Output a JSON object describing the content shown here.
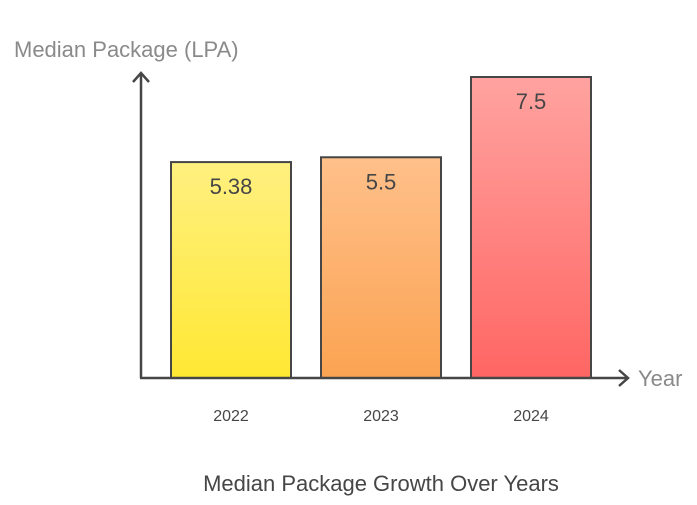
{
  "chart_data": {
    "type": "bar",
    "title": "Median Package Growth Over Years",
    "xlabel": "Year",
    "ylabel": "Median Package (LPA)",
    "categories": [
      "2022",
      "2023",
      "2024"
    ],
    "values": [
      5.38,
      5.5,
      7.5
    ],
    "data_labels": [
      "5.38",
      "5.5",
      "7.5"
    ],
    "ylim": [
      0,
      7.5
    ],
    "grid": false,
    "colors": [
      {
        "top": "#fff080",
        "bottom": "#ffe833"
      },
      {
        "top": "#ffc08a",
        "bottom": "#fba352"
      },
      {
        "top": "#ffa3a0",
        "bottom": "#ff6663"
      }
    ],
    "axis_color": "#464646"
  }
}
